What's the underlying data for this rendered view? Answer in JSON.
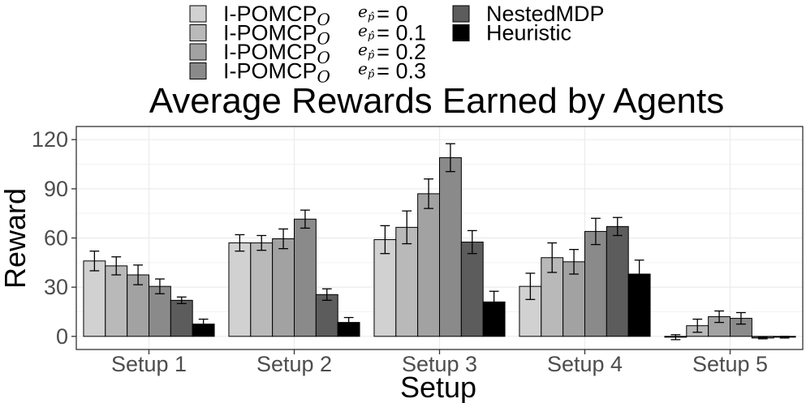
{
  "chart_data": {
    "type": "bar",
    "title": "Average Rewards Earned by Agents",
    "xlabel": "Setup",
    "ylabel": "Reward",
    "categories": [
      "Setup 1",
      "Setup 2",
      "Setup 3",
      "Setup 4",
      "Setup 5"
    ],
    "ylim": [
      -8,
      128
    ],
    "yticks": [
      0,
      30,
      60,
      90,
      120
    ],
    "grid": true,
    "legend_position": "top",
    "series": [
      {
        "name": "I-POMCP",
        "name_sub": "O",
        "param": "e",
        "param_sub": "p̂",
        "param_value": "= 0",
        "color": "#d1d1d1",
        "values": [
          46,
          57,
          59,
          30.5,
          -0.5
        ],
        "errors": [
          6,
          5,
          8.5,
          8,
          1.5
        ]
      },
      {
        "name": "I-POMCP",
        "name_sub": "O",
        "param": "e",
        "param_sub": "p̂",
        "param_value": "= 0.1",
        "color": "#b9b9b9",
        "values": [
          43,
          57,
          66.5,
          48,
          6.5
        ],
        "errors": [
          5.5,
          4.5,
          10,
          9,
          4
        ]
      },
      {
        "name": "I-POMCP",
        "name_sub": "O",
        "param": "e",
        "param_sub": "p̂",
        "param_value": "= 0.2",
        "color": "#a2a2a2",
        "values": [
          37.5,
          59.5,
          87,
          45.5,
          12
        ],
        "errors": [
          6,
          6,
          9,
          7.5,
          3.5
        ]
      },
      {
        "name": "I-POMCP",
        "name_sub": "O",
        "param": "e",
        "param_sub": "p̂",
        "param_value": "= 0.3",
        "color": "#8a8a8a",
        "values": [
          30.5,
          71.5,
          109,
          64,
          11
        ],
        "errors": [
          4.5,
          5.5,
          8.5,
          8,
          3.5
        ]
      },
      {
        "name": "NestedMDP",
        "color": "#5c5c5c",
        "values": [
          22,
          25.5,
          57.5,
          67,
          -1
        ],
        "errors": [
          2,
          3.5,
          7,
          5.5,
          0.5
        ]
      },
      {
        "name": "Heuristic",
        "color": "#000000",
        "values": [
          7.5,
          8.5,
          21,
          38,
          -0.5
        ],
        "errors": [
          3,
          3,
          6.5,
          8.5,
          0.5
        ]
      }
    ]
  }
}
